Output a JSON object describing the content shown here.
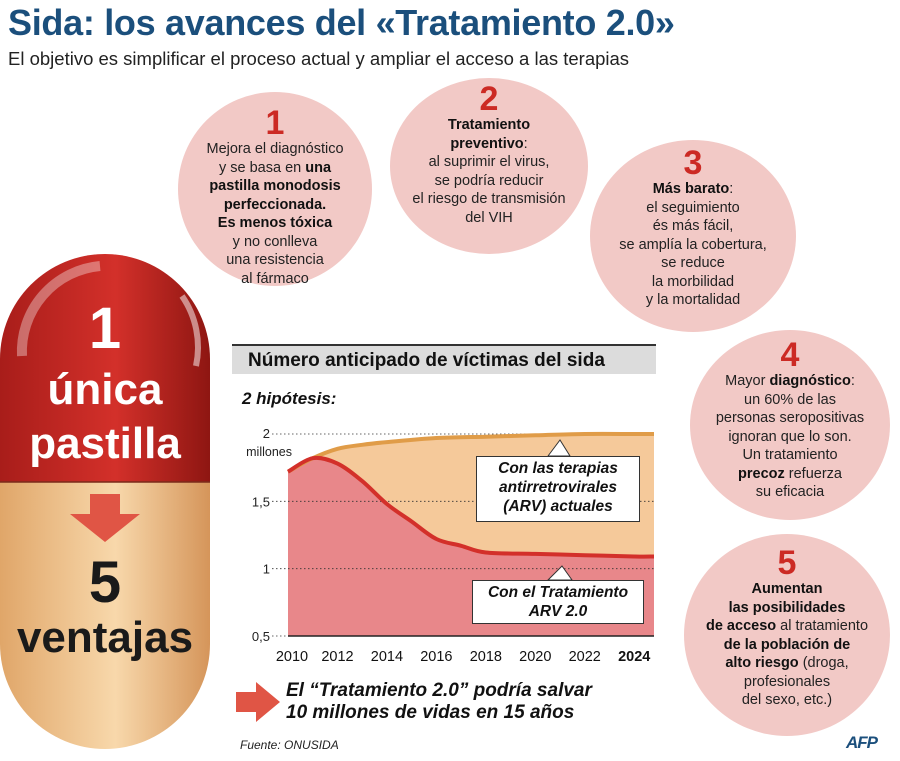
{
  "header": {
    "title": "Sida: los avances del «Tratamiento 2.0»",
    "subtitle": "El objetivo es simplificar el proceso actual y ampliar el acceso a las terapias"
  },
  "pill": {
    "top_number": "1",
    "top_line1": "única",
    "top_line2": "pastilla",
    "bottom_number": "5",
    "bottom_line": "ventajas",
    "arrow_icon": "down-arrow-icon",
    "colors": {
      "red": "#d3302a",
      "cream": "#f6d2a0"
    }
  },
  "bubbles": {
    "b1": {
      "num": "1",
      "t1": "Mejora el diagnóstico",
      "t2": "y se basa en ",
      "t2b": "una",
      "t3b": "pastilla monodosis",
      "t4b": "perfeccionada.",
      "t5b": "Es menos tóxica",
      "t6": "y no conlleva",
      "t7": "una resistencia",
      "t8": "al fármaco"
    },
    "b2": {
      "num": "2",
      "t1b": "Tratamiento",
      "t2b": "preventivo",
      "t2": ":",
      "t3": "al suprimir el virus,",
      "t4": "se podría reducir",
      "t5": "el riesgo de transmisión",
      "t6": "del VIH"
    },
    "b3": {
      "num": "3",
      "t1b": "Más barato",
      "t1": ":",
      "t2": "el seguimiento",
      "t3": "és más fácil,",
      "t4": "se amplía la cobertura,",
      "t5": "se reduce",
      "t6": "la morbilidad",
      "t7": "y la mortalidad"
    },
    "b4": {
      "num": "4",
      "t1": "Mayor ",
      "t1b": "diagnóstico",
      "t1c": ":",
      "t2": "un 60% de las",
      "t3": "personas seropositivas",
      "t4": "ignoran que lo son.",
      "t5": "Un tratamiento",
      "t6b": "precoz",
      "t6": " refuerza",
      "t7": "su eficacia"
    },
    "b5": {
      "num": "5",
      "t1b": "Aumentan",
      "t2b": "las posibilidades",
      "t3b": "de acceso",
      "t3": " al tratamiento",
      "t4b": "de la población de",
      "t5b": "alto riesgo",
      "t5": " (droga,",
      "t6": "profesionales",
      "t7": "del sexo, etc.)"
    }
  },
  "chart": {
    "title": "Número anticipado de víctimas del sida",
    "hypothesis": "2 hipótesis:",
    "callout_current_1": "Con las terapias",
    "callout_current_2": "antirretrovirales",
    "callout_current_3": "(ARV) actuales",
    "callout_new_1": "Con el Tratamiento",
    "callout_new_2": "ARV 2.0",
    "colors": {
      "upper_fill": "#f5c99a",
      "upper_line": "#e09c48",
      "lower_fill": "#e8878a",
      "lower_line": "#d3302a"
    }
  },
  "chart_data": {
    "type": "area",
    "title": "Número anticipado de víctimas del sida",
    "subtitle": "2 hipótesis:",
    "xlabel": "",
    "ylabel": "",
    "y_unit": "millones",
    "ylim": [
      0.5,
      2.0
    ],
    "yticks": [
      "0,5",
      "1",
      "1,5",
      "2"
    ],
    "xticks": [
      "2010",
      "2012",
      "2014",
      "2016",
      "2018",
      "2020",
      "2022",
      "2024"
    ],
    "grid": "dotted horizontal",
    "series": [
      {
        "name": "Con las terapias antirretrovirales (ARV) actuales",
        "x": [
          2010,
          2011,
          2012,
          2013,
          2014,
          2016,
          2018,
          2020,
          2022,
          2024
        ],
        "values": [
          1.72,
          1.82,
          1.89,
          1.92,
          1.94,
          1.97,
          1.98,
          1.99,
          2.0,
          2.0
        ]
      },
      {
        "name": "Con el Tratamiento ARV 2.0",
        "x": [
          2010,
          2011,
          2012,
          2013,
          2014,
          2015,
          2016,
          2017,
          2018,
          2020,
          2022,
          2024
        ],
        "values": [
          1.72,
          1.82,
          1.78,
          1.65,
          1.48,
          1.35,
          1.22,
          1.17,
          1.12,
          1.11,
          1.1,
          1.09
        ]
      }
    ]
  },
  "footer": {
    "save_line1": "El “Tratamiento 2.0” podría salvar",
    "save_line2": "10 millones de vidas en 15 años",
    "source": "Fuente: ONUSIDA",
    "logo": "AFP"
  }
}
